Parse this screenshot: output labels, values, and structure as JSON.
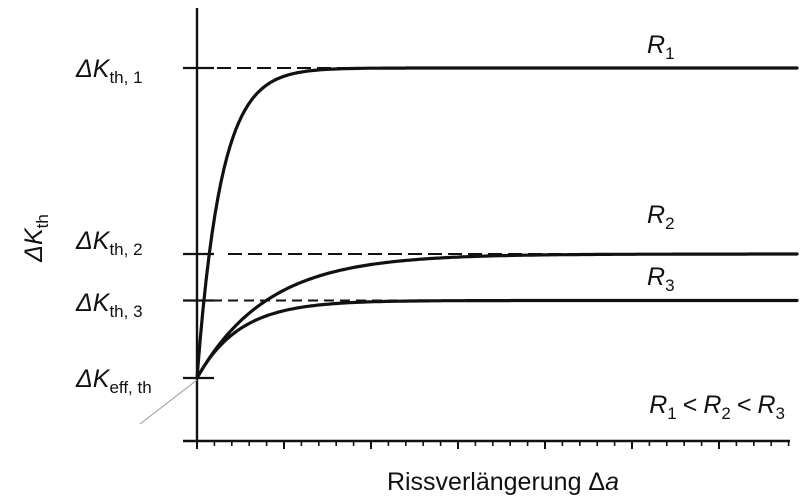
{
  "chart_data": {
    "type": "line",
    "ylabel": {
      "main": "ΔK",
      "sub": "th"
    },
    "xlabel": {
      "main": "Rissverlängerung Δ",
      "var": "a"
    },
    "y_start": {
      "name": "ΔK",
      "sub": "eff, th",
      "value": 0
    },
    "thresholds": [
      {
        "name": "ΔK",
        "sub": "th, 1",
        "value": 1.0
      },
      {
        "name": "ΔK",
        "sub": "th, 2",
        "value": 0.4
      },
      {
        "name": "ΔK",
        "sub": "th, 3",
        "value": 0.25
      }
    ],
    "series": [
      {
        "name": "R",
        "sub": "1",
        "asymptote": 1.0,
        "rate": 25
      },
      {
        "name": "R",
        "sub": "2",
        "asymptote": 0.4,
        "rate": 8.5
      },
      {
        "name": "R",
        "sub": "3",
        "asymptote": 0.25,
        "rate": 14
      }
    ],
    "relation": [
      {
        "name": "R",
        "sub": "1"
      },
      {
        "op": "<"
      },
      {
        "name": "R",
        "sub": "2"
      },
      {
        "op": "<"
      },
      {
        "name": "R",
        "sub": "3"
      }
    ],
    "x_minor_ticks": 34,
    "x_major_every": 5,
    "grid": false,
    "legend": "none"
  }
}
